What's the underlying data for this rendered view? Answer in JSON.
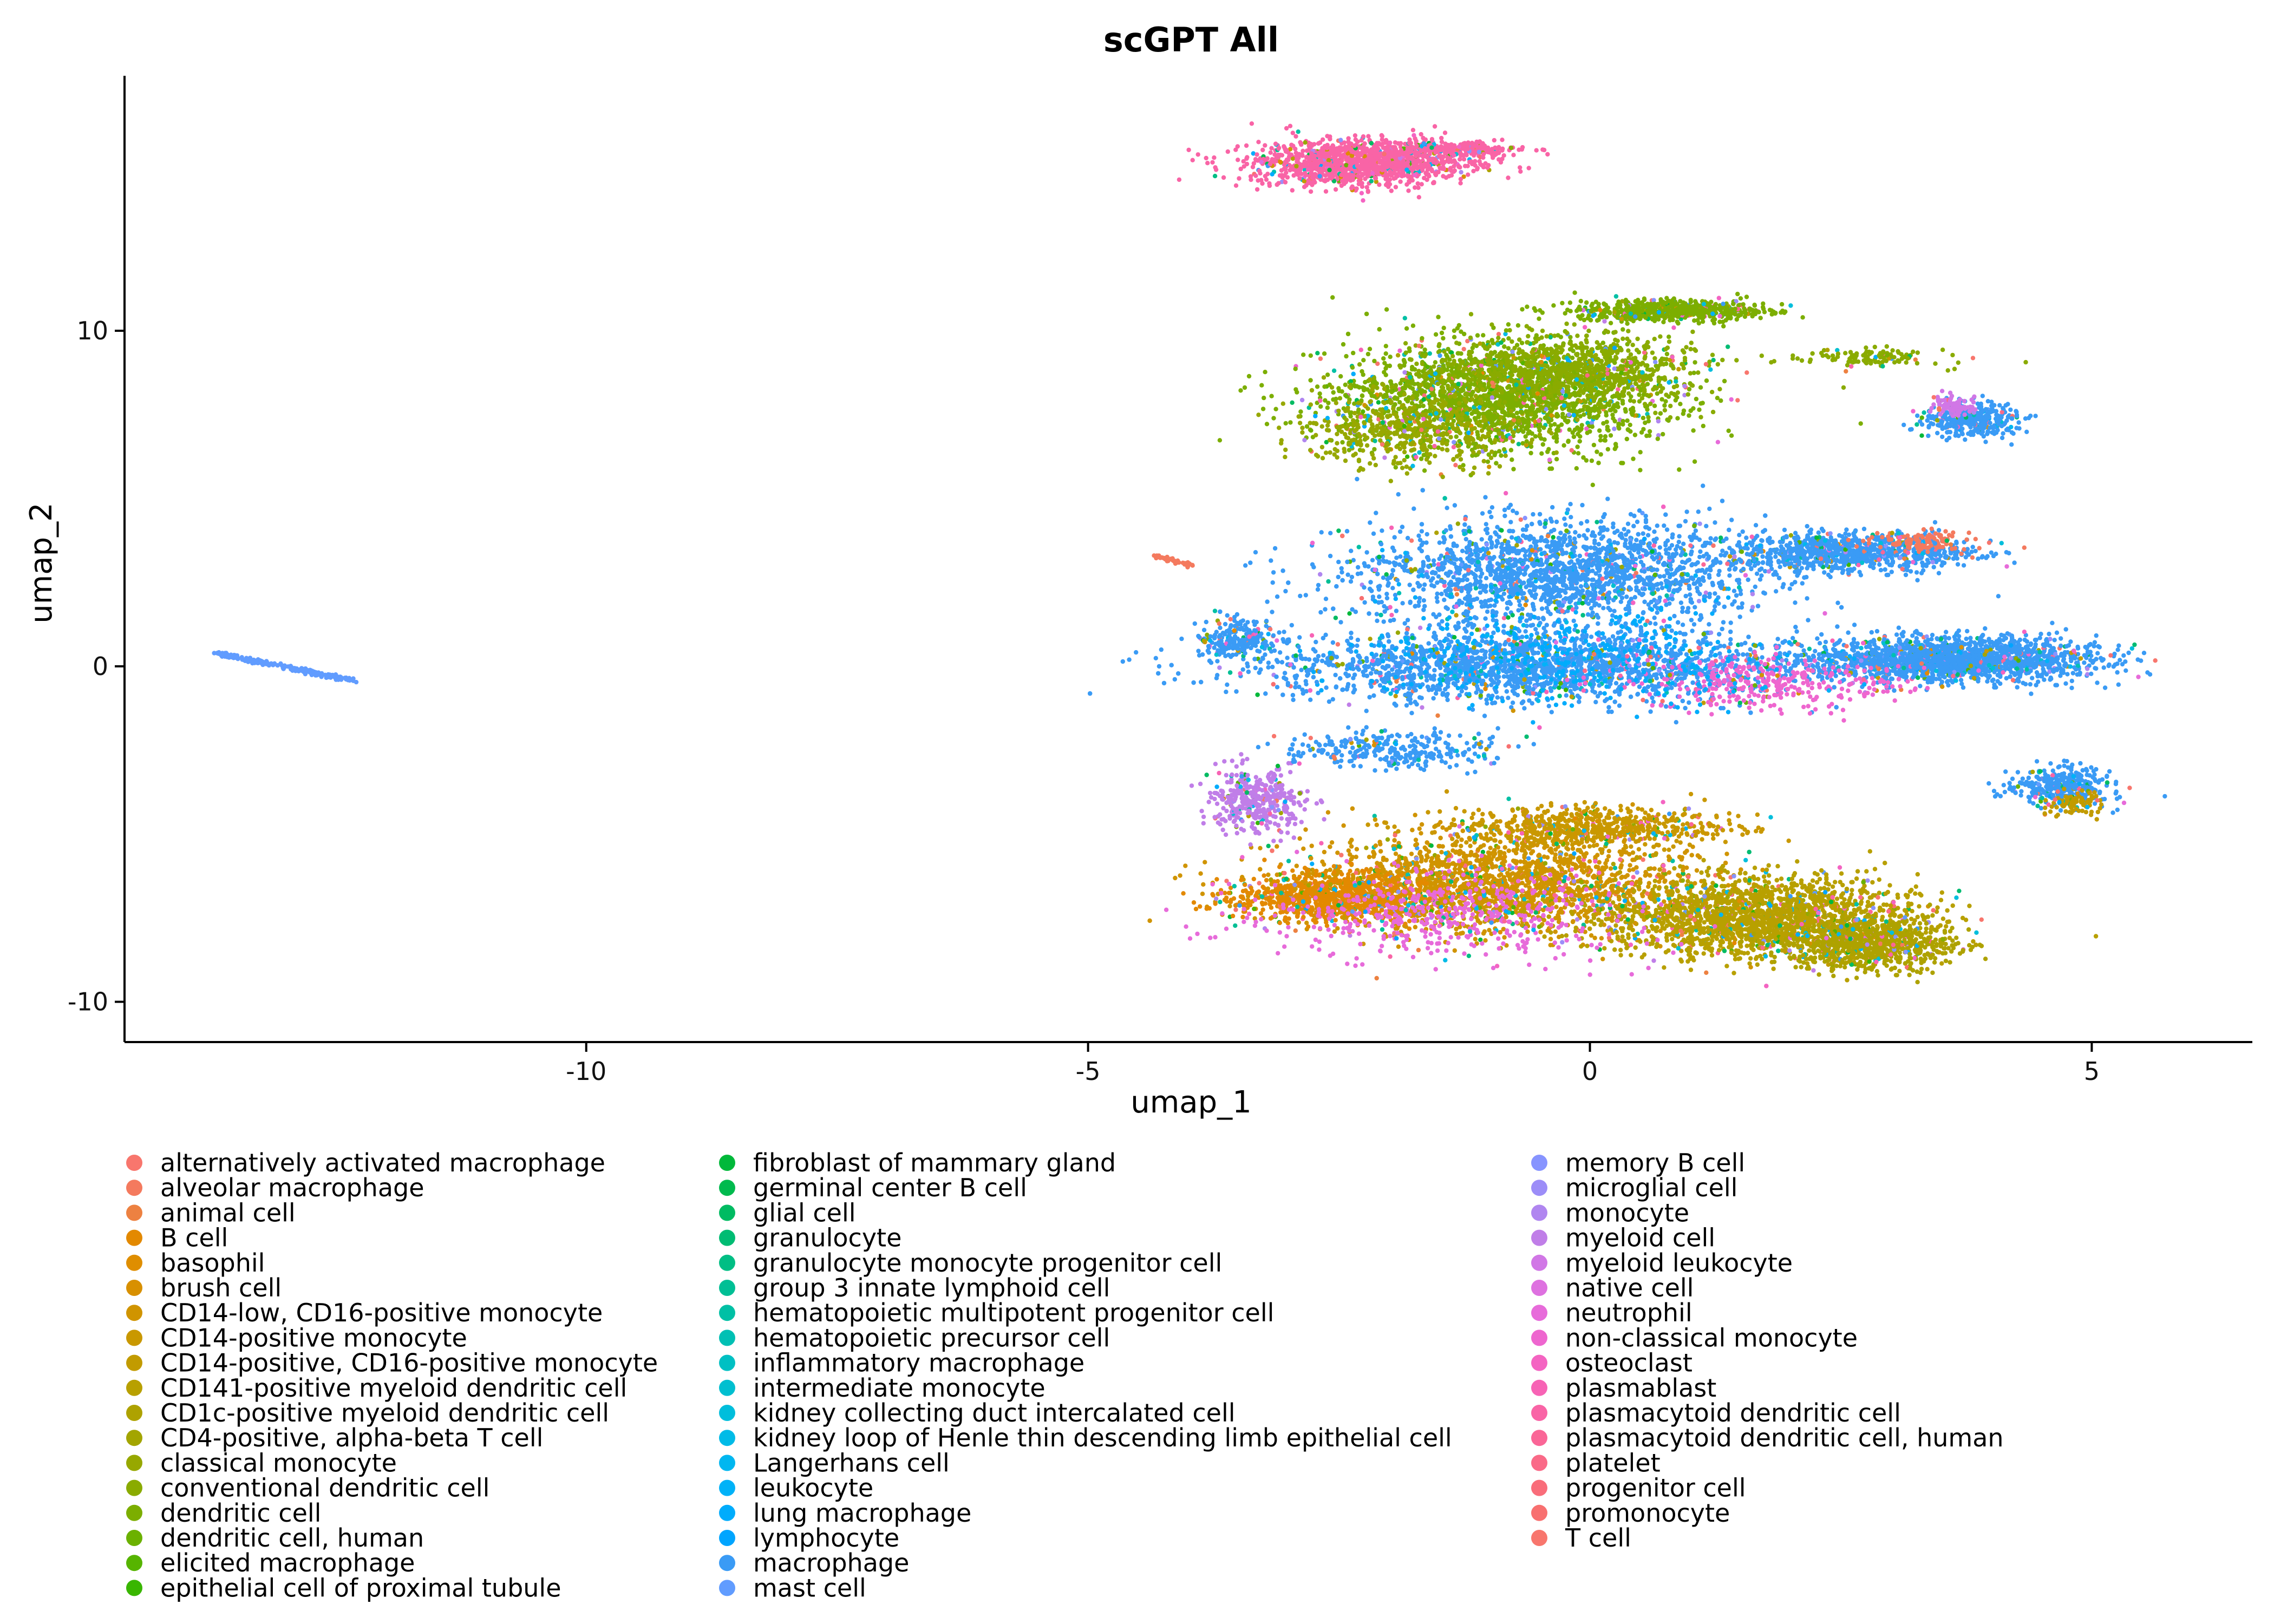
{
  "chart_data": {
    "type": "scatter",
    "title": "scGPT All",
    "xlabel": "umap_1",
    "ylabel": "umap_2",
    "xlim": [
      -14.6,
      6.6
    ],
    "ylim": [
      -11.2,
      17.6
    ],
    "x_ticks": [
      -10,
      -5,
      0,
      5
    ],
    "y_ticks": [
      -10,
      0,
      10
    ],
    "grid": false,
    "legend_position": "bottom",
    "legend_columns": 3,
    "legend": [
      {
        "name": "alternatively activated macrophage",
        "color": "#F8766D"
      },
      {
        "name": "alveolar macrophage",
        "color": "#F47A5E"
      },
      {
        "name": "animal cell",
        "color": "#ED8141"
      },
      {
        "name": "B cell",
        "color": "#E38900"
      },
      {
        "name": "basophil",
        "color": "#DF8E00"
      },
      {
        "name": "brush cell",
        "color": "#D89000"
      },
      {
        "name": "CD14-low, CD16-positive monocyte",
        "color": "#D09400"
      },
      {
        "name": "CD14-positive monocyte",
        "color": "#C99800"
      },
      {
        "name": "CD14-positive, CD16-positive monocyte",
        "color": "#C29B00"
      },
      {
        "name": "CD141-positive myeloid dendritic cell",
        "color": "#B8A000"
      },
      {
        "name": "CD1c-positive myeloid dendritic cell",
        "color": "#AEA200"
      },
      {
        "name": "CD4-positive, alpha-beta T cell",
        "color": "#A3A500"
      },
      {
        "name": "classical monocyte",
        "color": "#97A800"
      },
      {
        "name": "conventional dendritic cell",
        "color": "#8AAB00"
      },
      {
        "name": "dendritic cell",
        "color": "#7CAE00"
      },
      {
        "name": "dendritic cell, human",
        "color": "#6BB100"
      },
      {
        "name": "elicited macrophage",
        "color": "#56B400"
      },
      {
        "name": "epithelial cell of proximal tubule",
        "color": "#39B600"
      },
      {
        "name": "fibroblast of mammary gland",
        "color": "#00B83A"
      },
      {
        "name": "germinal center B cell",
        "color": "#00BA4E"
      },
      {
        "name": "glial cell",
        "color": "#00BB62"
      },
      {
        "name": "granulocyte",
        "color": "#00BC73"
      },
      {
        "name": "granulocyte monocyte progenitor cell",
        "color": "#00BE84"
      },
      {
        "name": "group 3 innate lymphoid cell",
        "color": "#00BF95"
      },
      {
        "name": "hematopoietic multipotent progenitor cell",
        "color": "#00C0A5"
      },
      {
        "name": "hematopoietic precursor cell",
        "color": "#00C0B4"
      },
      {
        "name": "inflammatory macrophage",
        "color": "#00C0C3"
      },
      {
        "name": "intermediate monocyte",
        "color": "#00BFD0"
      },
      {
        "name": "kidney collecting duct intercalated cell",
        "color": "#00BEDC"
      },
      {
        "name": "kidney loop of Henle thin descending limb epithelial cell",
        "color": "#00BBE7"
      },
      {
        "name": "Langerhans cell",
        "color": "#00B7F0"
      },
      {
        "name": "leukocyte",
        "color": "#00B2F8"
      },
      {
        "name": "lung macrophage",
        "color": "#00ACFC"
      },
      {
        "name": "lymphocyte",
        "color": "#00A5FF"
      },
      {
        "name": "macrophage",
        "color": "#3A9BF5"
      },
      {
        "name": "mast cell",
        "color": "#619CFF"
      },
      {
        "name": "memory B cell",
        "color": "#8794FF"
      },
      {
        "name": "microglial cell",
        "color": "#9C8DF8"
      },
      {
        "name": "monocyte",
        "color": "#B086F0"
      },
      {
        "name": "myeloid cell",
        "color": "#C07EE8"
      },
      {
        "name": "myeloid leukocyte",
        "color": "#D177E6"
      },
      {
        "name": "native cell",
        "color": "#DE71E0"
      },
      {
        "name": "neutrophil",
        "color": "#E76BDA"
      },
      {
        "name": "non-classical monocyte",
        "color": "#EE66CF"
      },
      {
        "name": "osteoclast",
        "color": "#F464C2"
      },
      {
        "name": "plasmablast",
        "color": "#F763B5"
      },
      {
        "name": "plasmacytoid dendritic cell",
        "color": "#F964A6"
      },
      {
        "name": "plasmacytoid dendritic cell, human",
        "color": "#FA6697"
      },
      {
        "name": "platelet",
        "color": "#FA6A88"
      },
      {
        "name": "progenitor cell",
        "color": "#F96D7A"
      },
      {
        "name": "promonocyte",
        "color": "#F87070"
      },
      {
        "name": "T cell",
        "color": "#F8766D"
      }
    ],
    "clusters": [
      {
        "series": "plasmacytoid dendritic cell",
        "type": "blob",
        "cx": -2.3,
        "cy": 15.0,
        "sx": 0.9,
        "sy": 0.55,
        "n": 1300
      },
      {
        "series": "plasmacytoid dendritic cell",
        "type": "blob",
        "cx": -1.4,
        "cy": 15.4,
        "sx": 0.6,
        "sy": 0.2,
        "n": 300
      },
      {
        "series": "dendritic cell",
        "type": "blob",
        "cx": -0.9,
        "cy": 8.0,
        "sx": 1.4,
        "sy": 1.4,
        "n": 2200
      },
      {
        "series": "conventional dendritic cell",
        "type": "blob",
        "cx": -0.3,
        "cy": 8.8,
        "sx": 1.1,
        "sy": 0.9,
        "n": 900
      },
      {
        "series": "dendritic cell",
        "type": "blob",
        "cx": 0.8,
        "cy": 10.6,
        "sx": 0.8,
        "sy": 0.25,
        "n": 700
      },
      {
        "series": "classical monocyte",
        "type": "blob",
        "cx": -1.8,
        "cy": 7.0,
        "sx": 0.9,
        "sy": 0.9,
        "n": 500
      },
      {
        "series": "conventional dendritic cell",
        "type": "blob",
        "cx": 2.8,
        "cy": 9.2,
        "sx": 0.6,
        "sy": 0.25,
        "n": 120
      },
      {
        "series": "macrophage",
        "type": "blob",
        "cx": 3.8,
        "cy": 7.3,
        "sx": 0.4,
        "sy": 0.45,
        "n": 350
      },
      {
        "series": "myeloid leukocyte",
        "type": "blob",
        "cx": 3.6,
        "cy": 7.8,
        "sx": 0.2,
        "sy": 0.3,
        "n": 80
      },
      {
        "series": "macrophage",
        "type": "blob",
        "cx": -0.3,
        "cy": 2.8,
        "sx": 1.7,
        "sy": 1.3,
        "n": 2600
      },
      {
        "series": "macrophage",
        "type": "blob",
        "cx": 2.6,
        "cy": 3.4,
        "sx": 1.0,
        "sy": 0.45,
        "n": 900
      },
      {
        "series": "alveolar macrophage",
        "type": "blob",
        "cx": 3.3,
        "cy": 3.7,
        "sx": 0.4,
        "sy": 0.3,
        "n": 120
      },
      {
        "series": "macrophage",
        "type": "blob",
        "cx": -0.6,
        "cy": 0.0,
        "sx": 2.2,
        "sy": 0.9,
        "n": 3000
      },
      {
        "series": "macrophage",
        "type": "blob",
        "cx": 3.6,
        "cy": 0.2,
        "sx": 1.2,
        "sy": 0.55,
        "n": 1900
      },
      {
        "series": "macrophage",
        "type": "blob",
        "cx": -3.5,
        "cy": 0.8,
        "sx": 0.35,
        "sy": 0.5,
        "n": 250
      },
      {
        "series": "non-classical monocyte",
        "type": "blob",
        "cx": 1.8,
        "cy": -0.5,
        "sx": 1.1,
        "sy": 0.6,
        "n": 350
      },
      {
        "series": "lung macrophage",
        "type": "blob",
        "cx": -0.2,
        "cy": 0.3,
        "sx": 1.8,
        "sy": 1.2,
        "n": 400
      },
      {
        "series": "macrophage",
        "type": "blob",
        "cx": 4.7,
        "cy": -3.6,
        "sx": 0.4,
        "sy": 0.5,
        "n": 350
      },
      {
        "series": "CD14-positive, CD16-positive monocyte",
        "type": "blob",
        "cx": 4.8,
        "cy": -4.1,
        "sx": 0.25,
        "sy": 0.3,
        "n": 90
      },
      {
        "series": "CD14-low, CD16-positive monocyte",
        "type": "blob",
        "cx": -1.0,
        "cy": -6.5,
        "sx": 1.7,
        "sy": 1.2,
        "n": 2600
      },
      {
        "series": "CD141-positive myeloid dendritic cell",
        "type": "blob",
        "cx": 1.7,
        "cy": -7.5,
        "sx": 1.3,
        "sy": 1.0,
        "n": 2300
      },
      {
        "series": "CD1c-positive myeloid dendritic cell",
        "type": "blob",
        "cx": 2.8,
        "cy": -8.3,
        "sx": 0.7,
        "sy": 0.6,
        "n": 800
      },
      {
        "series": "B cell",
        "type": "blob",
        "cx": -2.6,
        "cy": -6.9,
        "sx": 0.8,
        "sy": 0.6,
        "n": 900
      },
      {
        "series": "CD14-positive monocyte",
        "type": "blob",
        "cx": 0.0,
        "cy": -4.8,
        "sx": 1.2,
        "sy": 0.5,
        "n": 700
      },
      {
        "series": "myeloid cell",
        "type": "blob",
        "cx": -3.3,
        "cy": -4.0,
        "sx": 0.4,
        "sy": 0.8,
        "n": 400
      },
      {
        "series": "neutrophil",
        "type": "blob",
        "cx": -1.5,
        "cy": -7.5,
        "sx": 1.5,
        "sy": 1.1,
        "n": 500
      },
      {
        "series": "macrophage",
        "type": "blob",
        "cx": -2.0,
        "cy": -2.5,
        "sx": 0.9,
        "sy": 0.5,
        "n": 300
      },
      {
        "series": "mast cell",
        "type": "line",
        "x0": -13.7,
        "y0": 0.4,
        "x1": -12.3,
        "y1": -0.45,
        "n": 240
      },
      {
        "series": "alveolar macrophage",
        "type": "line",
        "x0": -4.35,
        "y0": 3.3,
        "x1": -3.95,
        "y1": 3.0,
        "n": 40
      }
    ]
  }
}
